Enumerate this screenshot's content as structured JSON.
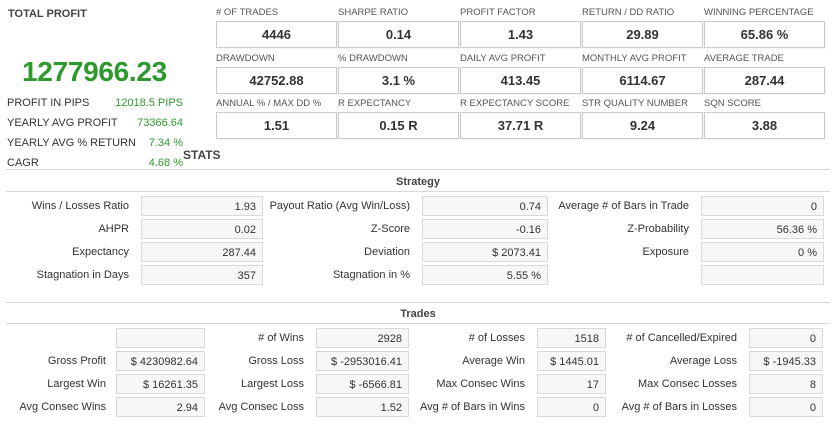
{
  "total_profit": {
    "title": "TOTAL PROFIT",
    "value": "1277966.23",
    "rows": [
      {
        "label": "PROFIT IN PIPS",
        "value": "12018.5 PIPS"
      },
      {
        "label": "YEARLY AVG PROFIT",
        "value": "73366.64"
      },
      {
        "label": "YEARLY AVG % RETURN",
        "value": "7.34 %"
      },
      {
        "label": "CAGR",
        "value": "4.68 %"
      }
    ]
  },
  "metrics": [
    {
      "label": "# OF TRADES",
      "value": "4446"
    },
    {
      "label": "SHARPE RATIO",
      "value": "0.14"
    },
    {
      "label": "PROFIT FACTOR",
      "value": "1.43"
    },
    {
      "label": "RETURN / DD RATIO",
      "value": "29.89"
    },
    {
      "label": "WINNING PERCENTAGE",
      "value": "65.86 %"
    },
    {
      "label": "DRAWDOWN",
      "value": "42752.88"
    },
    {
      "label": "% DRAWDOWN",
      "value": "3.1 %"
    },
    {
      "label": "DAILY AVG PROFIT",
      "value": "413.45"
    },
    {
      "label": "MONTHLY AVG PROFIT",
      "value": "6114.67"
    },
    {
      "label": "AVERAGE TRADE",
      "value": "287.44"
    },
    {
      "label": "ANNUAL % / MAX DD %",
      "value": "1.51"
    },
    {
      "label": "R EXPECTANCY",
      "value": "0.15 R"
    },
    {
      "label": "R EXPECTANCY SCORE",
      "value": "37.71 R"
    },
    {
      "label": "STR QUALITY NUMBER",
      "value": "9.24"
    },
    {
      "label": "SQN SCORE",
      "value": "3.88"
    }
  ],
  "stats_title": "STATS",
  "strategy": {
    "title": "Strategy",
    "rows": [
      [
        {
          "label": "Wins / Losses Ratio",
          "value": "1.93"
        },
        {
          "label": "Payout Ratio (Avg Win/Loss)",
          "value": "0.74"
        },
        {
          "label": "Average # of Bars in Trade",
          "value": "0"
        }
      ],
      [
        {
          "label": "AHPR",
          "value": "0.02"
        },
        {
          "label": "Z-Score",
          "value": "-0.16"
        },
        {
          "label": "Z-Probability",
          "value": "56.36 %"
        }
      ],
      [
        {
          "label": "Expectancy",
          "value": "287.44"
        },
        {
          "label": "Deviation",
          "value": "$ 2073.41"
        },
        {
          "label": "Exposure",
          "value": "0 %"
        }
      ],
      [
        {
          "label": "Stagnation in Days",
          "value": "357"
        },
        {
          "label": "Stagnation in %",
          "value": "5.55 %"
        },
        {
          "label": "",
          "value": ""
        }
      ]
    ]
  },
  "trades": {
    "title": "Trades",
    "rows": [
      [
        {
          "label": "",
          "value": ""
        },
        {
          "label": "# of Wins",
          "value": "2928"
        },
        {
          "label": "# of Losses",
          "value": "1518"
        },
        {
          "label": "# of Cancelled/Expired",
          "value": "0"
        }
      ],
      [
        {
          "label": "Gross Profit",
          "value": "$ 4230982.64"
        },
        {
          "label": "Gross Loss",
          "value": "$ -2953016.41"
        },
        {
          "label": "Average Win",
          "value": "$ 1445.01"
        },
        {
          "label": "Average Loss",
          "value": "$ -1945.33"
        }
      ],
      [
        {
          "label": "Largest Win",
          "value": "$ 16261.35"
        },
        {
          "label": "Largest Loss",
          "value": "$ -6566.81"
        },
        {
          "label": "Max Consec Wins",
          "value": "17"
        },
        {
          "label": "Max Consec Losses",
          "value": "8"
        }
      ],
      [
        {
          "label": "Avg Consec Wins",
          "value": "2.94"
        },
        {
          "label": "Avg Consec Loss",
          "value": "1.52"
        },
        {
          "label": "Avg # of Bars in Wins",
          "value": "0"
        },
        {
          "label": "Avg # of Bars in Losses",
          "value": "0"
        }
      ]
    ]
  }
}
